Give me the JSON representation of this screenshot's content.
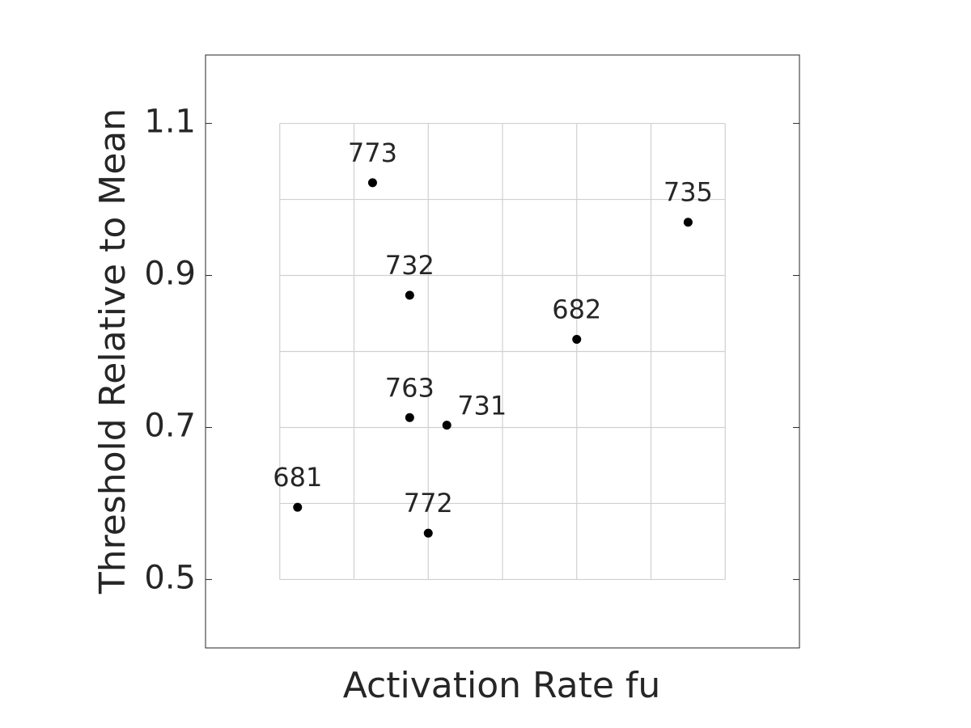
{
  "chart_data": {
    "type": "scatter",
    "xlabel": "Activation Rate fu",
    "ylabel": "Threshold Relative to Mean",
    "xlim": [
      0,
      8
    ],
    "ylim": [
      0.41,
      1.19
    ],
    "yticks": [
      0.5,
      0.7,
      0.9,
      1.1
    ],
    "xgrid": [
      1,
      2,
      3,
      4,
      5,
      6,
      7
    ],
    "ygrid": [
      0.5,
      0.6,
      0.7,
      0.8,
      0.9,
      1.0,
      1.1
    ],
    "color": "#000000",
    "x": [
      2.25,
      6.5,
      2.75,
      5.0,
      2.75,
      3.25,
      1.24,
      3.0
    ],
    "values": [
      1.022,
      0.97,
      0.874,
      0.816,
      0.713,
      0.703,
      0.595,
      0.561
    ],
    "point_labels": [
      "773",
      "735",
      "732",
      "682",
      "763",
      "731",
      "681",
      "772"
    ]
  }
}
